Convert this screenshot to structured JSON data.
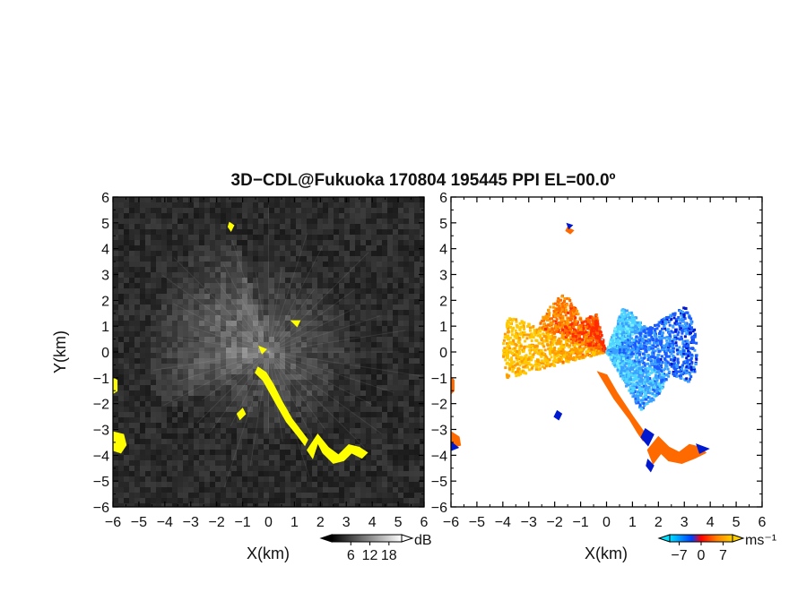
{
  "chart_data": {
    "type": "heatmap",
    "title": "3D−CDL@Fukuoka 170804 195445 PPI EL=00.0º",
    "xlim": [
      -6,
      6
    ],
    "ylim": [
      -6,
      6
    ],
    "x_ticks": [
      -6,
      -5,
      -4,
      -3,
      -2,
      -1,
      0,
      1,
      2,
      3,
      4,
      5,
      6
    ],
    "y_ticks": [
      -6,
      -5,
      -4,
      -3,
      -2,
      -1,
      0,
      1,
      2,
      3,
      4,
      5,
      6
    ],
    "x_tick_labels": [
      "−6",
      "−5",
      "−4",
      "−3",
      "−2",
      "−1",
      "0",
      "1",
      "2",
      "3",
      "4",
      "5",
      "6"
    ],
    "y_tick_labels": [
      "−6",
      "−5",
      "−4",
      "−3",
      "−2",
      "−1",
      "0",
      "1",
      "2",
      "3",
      "4",
      "5",
      "6"
    ],
    "panels": [
      {
        "name": "intensity",
        "xlabel": "X(km)",
        "ylabel": "Y(km)",
        "colorbar": {
          "unit": "dB",
          "tick_values": [
            6,
            12,
            18
          ],
          "tick_labels": [
            "6",
            "12",
            "18"
          ],
          "range": [
            0,
            22
          ],
          "colors": [
            "#000000",
            "#ffffff"
          ]
        },
        "mask_color": "#ffff00",
        "mask_regions": [
          [
            [
              -0.4,
              -0.6
            ],
            [
              -0.1,
              -0.8
            ],
            [
              0.2,
              -1.3
            ],
            [
              0.5,
              -1.9
            ],
            [
              0.9,
              -2.6
            ],
            [
              1.2,
              -3.0
            ],
            [
              1.5,
              -3.4
            ],
            [
              1.4,
              -3.6
            ],
            [
              1.1,
              -3.2
            ],
            [
              0.7,
              -2.7
            ],
            [
              0.3,
              -2.0
            ],
            [
              -0.2,
              -1.1
            ],
            [
              -0.5,
              -0.8
            ]
          ],
          [
            [
              1.9,
              -3.2
            ],
            [
              2.3,
              -3.7
            ],
            [
              2.7,
              -4.0
            ],
            [
              3.1,
              -3.6
            ],
            [
              3.5,
              -3.7
            ],
            [
              3.8,
              -3.9
            ],
            [
              3.6,
              -4.1
            ],
            [
              3.2,
              -3.9
            ],
            [
              2.9,
              -4.2
            ],
            [
              2.5,
              -4.3
            ],
            [
              2.1,
              -3.9
            ],
            [
              1.9,
              -3.5
            ],
            [
              1.7,
              -4.1
            ],
            [
              1.5,
              -3.8
            ]
          ],
          [
            [
              -6.0,
              -3.1
            ],
            [
              -5.6,
              -3.2
            ],
            [
              -5.5,
              -3.6
            ],
            [
              -5.7,
              -3.9
            ],
            [
              -6.0,
              -3.8
            ]
          ],
          [
            [
              -6.0,
              -1.0
            ],
            [
              -5.85,
              -1.1
            ],
            [
              -5.85,
              -1.5
            ],
            [
              -6.0,
              -1.6
            ]
          ],
          [
            [
              -1.0,
              -2.2
            ],
            [
              -0.9,
              -2.4
            ],
            [
              -1.1,
              -2.6
            ],
            [
              -1.2,
              -2.4
            ]
          ],
          [
            [
              -1.5,
              5.0
            ],
            [
              -1.35,
              4.9
            ],
            [
              -1.45,
              4.7
            ],
            [
              -1.55,
              4.85
            ]
          ],
          [
            [
              0.9,
              1.2
            ],
            [
              1.2,
              1.2
            ],
            [
              1.1,
              1.0
            ]
          ],
          [
            [
              -0.35,
              0.2
            ],
            [
              -0.1,
              0.1
            ],
            [
              -0.25,
              -0.05
            ]
          ]
        ]
      },
      {
        "name": "velocity",
        "xlabel": "X(km)",
        "colorbar": {
          "unit": "ms⁻¹",
          "tick_values": [
            -7,
            0,
            7
          ],
          "tick_labels": [
            "−7",
            "0",
            "7"
          ],
          "range": [
            -10,
            10
          ],
          "colors": [
            "#00e0ff",
            "#0040ff",
            "#ff0000",
            "#ff8000",
            "#ffd000"
          ]
        },
        "sectors": [
          {
            "az_from": 255,
            "az_to": 290,
            "r_max": 4.0,
            "vel": 8
          },
          {
            "az_from": 290,
            "az_to": 325,
            "r_max": 2.8,
            "vel": 5
          },
          {
            "az_from": 325,
            "az_to": 345,
            "r_max": 1.5,
            "vel": 3
          },
          {
            "az_from": 20,
            "az_to": 60,
            "r_max": 1.8,
            "vel": -4
          },
          {
            "az_from": 60,
            "az_to": 110,
            "r_max": 3.5,
            "vel": -7
          },
          {
            "az_from": 110,
            "az_to": 150,
            "r_max": 2.6,
            "vel": -5
          }
        ],
        "edge_patches": [
          {
            "points": [
              [
                -0.3,
                -0.8
              ],
              [
                0.3,
                -1.8
              ],
              [
                0.9,
                -2.6
              ],
              [
                1.2,
                -3.1
              ],
              [
                1.4,
                -3.4
              ],
              [
                1.5,
                -3.2
              ],
              [
                1.0,
                -2.5
              ],
              [
                0.4,
                -1.6
              ],
              [
                0.0,
                -0.9
              ]
            ],
            "vel": 3
          },
          {
            "points": [
              [
                2.0,
                -3.3
              ],
              [
                2.4,
                -3.7
              ],
              [
                2.8,
                -3.9
              ],
              [
                3.2,
                -3.6
              ],
              [
                3.6,
                -3.7
              ],
              [
                3.8,
                -3.9
              ],
              [
                3.4,
                -4.1
              ],
              [
                2.9,
                -4.3
              ],
              [
                2.4,
                -4.2
              ],
              [
                2.1,
                -3.9
              ],
              [
                1.8,
                -4.3
              ],
              [
                1.6,
                -3.8
              ]
            ],
            "vel": 4
          },
          {
            "points": [
              [
                -6.0,
                -3.1
              ],
              [
                -5.7,
                -3.3
              ],
              [
                -5.65,
                -3.6
              ],
              [
                -6.0,
                -3.7
              ]
            ],
            "vel": 4
          },
          {
            "points": [
              [
                -6.0,
                -1.0
              ],
              [
                -5.9,
                -1.1
              ],
              [
                -5.9,
                -1.5
              ],
              [
                -6.0,
                -1.6
              ]
            ],
            "vel": 4
          },
          {
            "points": [
              [
                -1.5,
                4.8
              ],
              [
                -1.3,
                4.7
              ],
              [
                -1.4,
                4.6
              ],
              [
                -1.55,
                4.7
              ]
            ],
            "vel": 3
          }
        ],
        "edge_dark": [
          {
            "points": [
              [
                1.5,
                -3.0
              ],
              [
                1.8,
                -3.2
              ],
              [
                1.6,
                -3.6
              ],
              [
                1.35,
                -3.3
              ]
            ],
            "vel": -8
          },
          {
            "points": [
              [
                3.5,
                -3.6
              ],
              [
                3.9,
                -3.75
              ],
              [
                3.6,
                -3.9
              ]
            ],
            "vel": -8
          },
          {
            "points": [
              [
                -1.9,
                -2.3
              ],
              [
                -1.75,
                -2.4
              ],
              [
                -1.85,
                -2.6
              ],
              [
                -2.0,
                -2.5
              ]
            ],
            "vel": -8
          },
          {
            "points": [
              [
                1.6,
                -4.2
              ],
              [
                1.8,
                -4.4
              ],
              [
                1.7,
                -4.6
              ],
              [
                1.55,
                -4.4
              ]
            ],
            "vel": -8
          },
          {
            "points": [
              [
                -6.0,
                -3.5
              ],
              [
                -5.75,
                -3.7
              ],
              [
                -6.0,
                -3.8
              ]
            ],
            "vel": -8
          },
          {
            "points": [
              [
                -1.5,
                4.95
              ],
              [
                -1.35,
                4.9
              ],
              [
                -1.45,
                4.8
              ]
            ],
            "vel": -8
          }
        ]
      }
    ]
  }
}
